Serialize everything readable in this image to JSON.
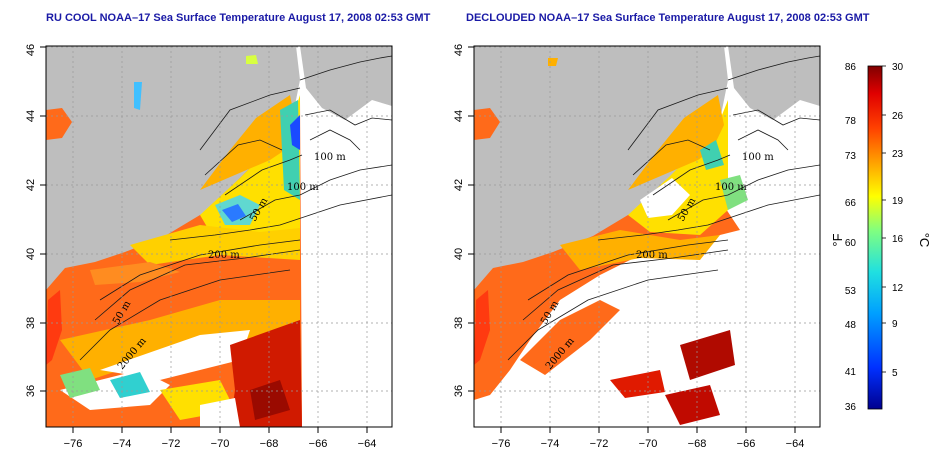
{
  "panels": {
    "left": {
      "title": "RU COOL NOAA–17 Sea Surface Temperature August 17, 2008 02:53 GMT",
      "contour_labels": [
        "100 m",
        "100 m",
        "50 m",
        "200 m",
        "50 m",
        "2000 m"
      ]
    },
    "right": {
      "title": "DECLOUDED NOAA–17 Sea Surface Temperature August 17, 2008 02:53 GMT",
      "contour_labels": [
        "100 m",
        "100 m",
        "50 m",
        "200 m",
        "50 m",
        "2000 m"
      ]
    }
  },
  "axes": {
    "x_ticks": [
      "−76",
      "−74",
      "−72",
      "−70",
      "−68",
      "−66",
      "−64"
    ],
    "y_ticks": [
      "36",
      "38",
      "40",
      "42",
      "44",
      "46"
    ]
  },
  "colorbar": {
    "f_labels": [
      "86",
      "78",
      "73",
      "66",
      "60",
      "53",
      "48",
      "41",
      "36"
    ],
    "c_labels": [
      "30",
      "26",
      "23",
      "19",
      "16",
      "12",
      "9",
      "5"
    ],
    "f_unit": "°F",
    "c_unit": "°C",
    "range_c": [
      2,
      30
    ],
    "colors": [
      "#00008f",
      "#0030ff",
      "#00a0ff",
      "#20e0e0",
      "#80ff80",
      "#ffff00",
      "#ffa000",
      "#ff4000",
      "#e00000",
      "#800000"
    ]
  },
  "colors": {
    "land": "#bebebe",
    "ocean_clear": "#ffffff",
    "warm": "#ff5a1a",
    "hot": "#cc1a00",
    "mid": "#ffb400",
    "cool": "#ffe600",
    "cold": "#40e0c0",
    "coldest": "#1050ff"
  }
}
